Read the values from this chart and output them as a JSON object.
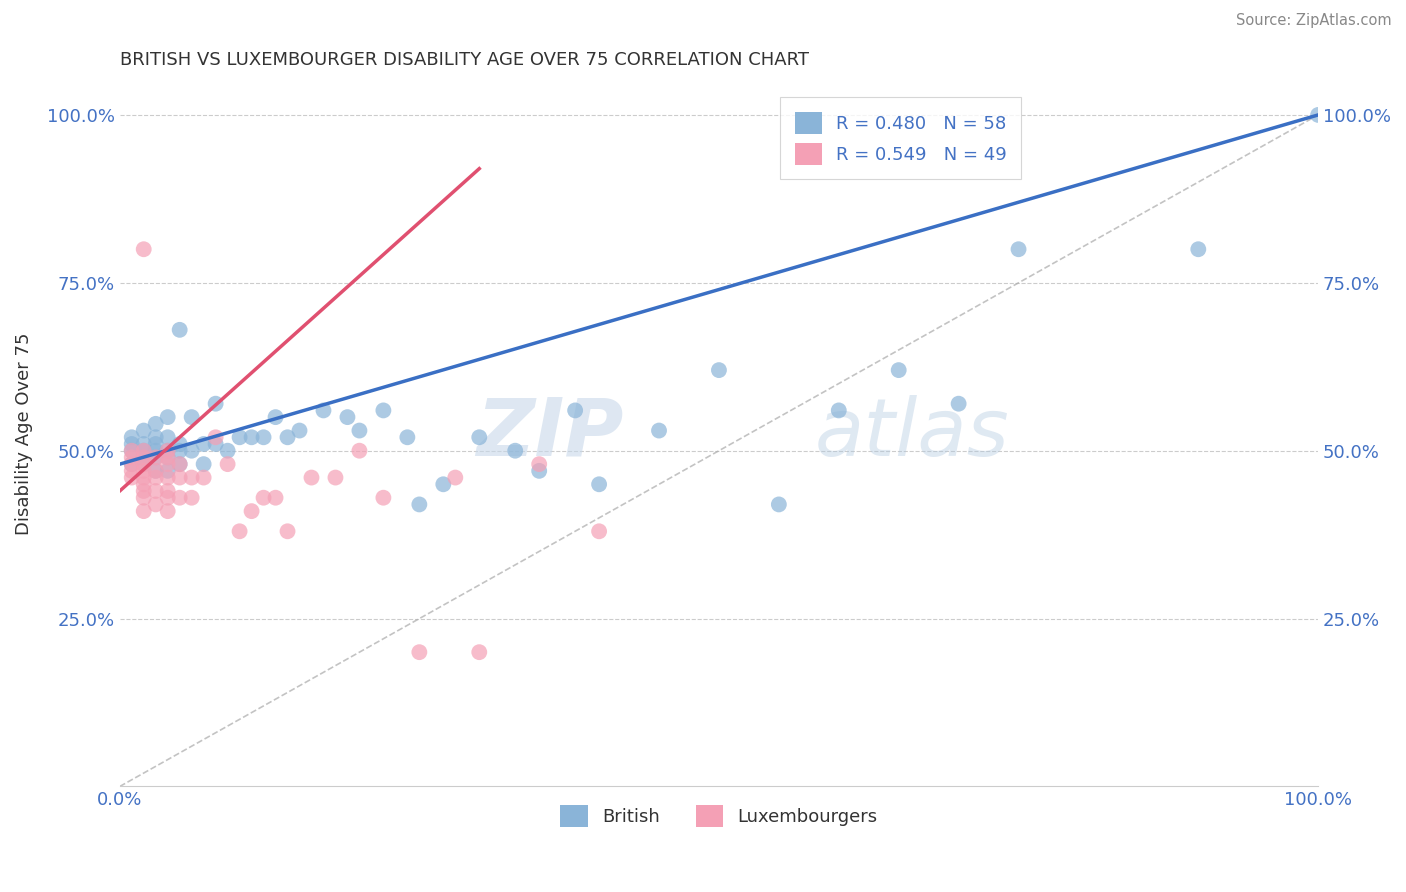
{
  "title": "BRITISH VS LUXEMBOURGER DISABILITY AGE OVER 75 CORRELATION CHART",
  "source": "Source: ZipAtlas.com",
  "ylabel": "Disability Age Over 75",
  "british_color": "#8ab4d8",
  "luxembourger_color": "#f4a0b5",
  "british_line_color": "#3a6fc4",
  "luxembourger_line_color": "#e05070",
  "british_R": 0.48,
  "british_N": 58,
  "luxembourger_R": 0.549,
  "luxembourger_N": 49,
  "watermark_zip": "ZIP",
  "watermark_atlas": "atlas",
  "british_x": [
    0.01,
    0.01,
    0.01,
    0.01,
    0.02,
    0.02,
    0.02,
    0.02,
    0.02,
    0.03,
    0.03,
    0.03,
    0.03,
    0.03,
    0.03,
    0.04,
    0.04,
    0.04,
    0.04,
    0.04,
    0.05,
    0.05,
    0.05,
    0.05,
    0.06,
    0.06,
    0.07,
    0.07,
    0.08,
    0.08,
    0.09,
    0.1,
    0.11,
    0.12,
    0.13,
    0.14,
    0.15,
    0.17,
    0.19,
    0.2,
    0.22,
    0.24,
    0.25,
    0.27,
    0.3,
    0.33,
    0.35,
    0.38,
    0.4,
    0.45,
    0.5,
    0.55,
    0.6,
    0.65,
    0.7,
    0.75,
    0.9,
    1.0
  ],
  "british_y": [
    0.48,
    0.5,
    0.51,
    0.52,
    0.48,
    0.49,
    0.5,
    0.51,
    0.53,
    0.47,
    0.49,
    0.5,
    0.51,
    0.52,
    0.54,
    0.47,
    0.49,
    0.5,
    0.52,
    0.55,
    0.48,
    0.5,
    0.51,
    0.68,
    0.5,
    0.55,
    0.48,
    0.51,
    0.51,
    0.57,
    0.5,
    0.52,
    0.52,
    0.52,
    0.55,
    0.52,
    0.53,
    0.56,
    0.55,
    0.53,
    0.56,
    0.52,
    0.42,
    0.45,
    0.52,
    0.5,
    0.47,
    0.56,
    0.45,
    0.53,
    0.62,
    0.42,
    0.56,
    0.62,
    0.57,
    0.8,
    0.8,
    1.0
  ],
  "luxembourger_x": [
    0.01,
    0.01,
    0.01,
    0.01,
    0.01,
    0.02,
    0.02,
    0.02,
    0.02,
    0.02,
    0.02,
    0.02,
    0.02,
    0.02,
    0.02,
    0.03,
    0.03,
    0.03,
    0.03,
    0.03,
    0.04,
    0.04,
    0.04,
    0.04,
    0.04,
    0.04,
    0.04,
    0.05,
    0.05,
    0.05,
    0.06,
    0.06,
    0.07,
    0.08,
    0.09,
    0.1,
    0.11,
    0.12,
    0.13,
    0.14,
    0.16,
    0.18,
    0.2,
    0.22,
    0.25,
    0.28,
    0.3,
    0.35,
    0.4
  ],
  "luxembourger_y": [
    0.46,
    0.47,
    0.48,
    0.49,
    0.5,
    0.41,
    0.43,
    0.44,
    0.45,
    0.46,
    0.47,
    0.48,
    0.49,
    0.5,
    0.8,
    0.42,
    0.44,
    0.46,
    0.47,
    0.49,
    0.41,
    0.43,
    0.44,
    0.46,
    0.48,
    0.49,
    0.5,
    0.43,
    0.46,
    0.48,
    0.43,
    0.46,
    0.46,
    0.52,
    0.48,
    0.38,
    0.41,
    0.43,
    0.43,
    0.38,
    0.46,
    0.46,
    0.5,
    0.43,
    0.2,
    0.46,
    0.2,
    0.48,
    0.38
  ],
  "xmin": 0.0,
  "xmax": 1.0,
  "ymin": 0.0,
  "ymax": 1.05,
  "yticks": [
    0.25,
    0.5,
    0.75,
    1.0
  ],
  "xticks": [
    0.0,
    1.0
  ]
}
